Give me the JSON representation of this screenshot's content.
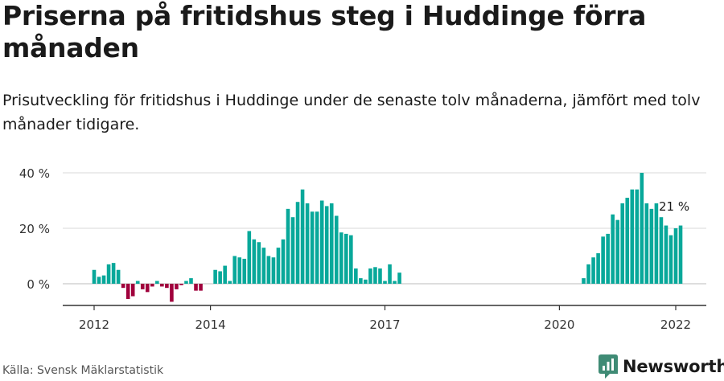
{
  "title": "Priserna på fritidshus steg i Huddinge förra månaden",
  "subtitle": "Prisutveckling för fritidshus i Huddinge under de senaste tolv månaderna, jämfört med tolv månader tidigare.",
  "source": "Källa: Svensk Mäklarstatistik",
  "brand": "Newsworthy",
  "colors": {
    "positive": "#08a89a",
    "negative": "#a0003c",
    "grid": "#d9d9d9",
    "axis": "#333333",
    "brand_icon": "#3f8b75"
  },
  "chart_data": {
    "type": "bar",
    "title": "Priserna på fritidshus steg i Huddinge förra månaden",
    "xlabel": "",
    "ylabel": "",
    "ylim": [
      -8,
      40
    ],
    "yticks": [
      0,
      20,
      40
    ],
    "ytick_labels": [
      "0 %",
      "20 %",
      "40 %"
    ],
    "xtick_labels": [
      {
        "label": "2012",
        "month_index": 0
      },
      {
        "label": "2014",
        "month_index": 24
      },
      {
        "label": "2017",
        "month_index": 60
      },
      {
        "label": "2020",
        "month_index": 96
      },
      {
        "label": "2022",
        "month_index": 120
      }
    ],
    "grid": true,
    "annotation": {
      "text": "21 %",
      "month_index": 120
    },
    "start": "2012-01",
    "end": "2022-01",
    "series": [
      {
        "name": "Prisutveckling",
        "values": [
          5,
          2.5,
          3,
          7,
          7.5,
          5,
          -1.5,
          -5.5,
          -4.5,
          1,
          -2,
          -3,
          -1,
          1,
          -1,
          -1.5,
          -6.5,
          -2,
          -0.5,
          1,
          2,
          -2.5,
          -2.5,
          null,
          null,
          5,
          4.5,
          6.5,
          1,
          10,
          9.5,
          9,
          19,
          16,
          15,
          13,
          10,
          9.5,
          13,
          16,
          27,
          24,
          29.5,
          34,
          29,
          26,
          26,
          30,
          28,
          29,
          24.5,
          18.5,
          18,
          17.5,
          5.5,
          2,
          1.5,
          5.5,
          6,
          5.5,
          1,
          7,
          1,
          4,
          null,
          null,
          null,
          null,
          null,
          null,
          null,
          null,
          null,
          null,
          null,
          null,
          null,
          null,
          null,
          null,
          null,
          null,
          null,
          null,
          null,
          null,
          null,
          null,
          null,
          null,
          null,
          null,
          null,
          null,
          null,
          null,
          null,
          null,
          null,
          null,
          null,
          2,
          7,
          9.5,
          11,
          17,
          18,
          25,
          23,
          29,
          31,
          34,
          34,
          40,
          29,
          27,
          29,
          24,
          21,
          17.5,
          20,
          21
        ]
      }
    ]
  }
}
